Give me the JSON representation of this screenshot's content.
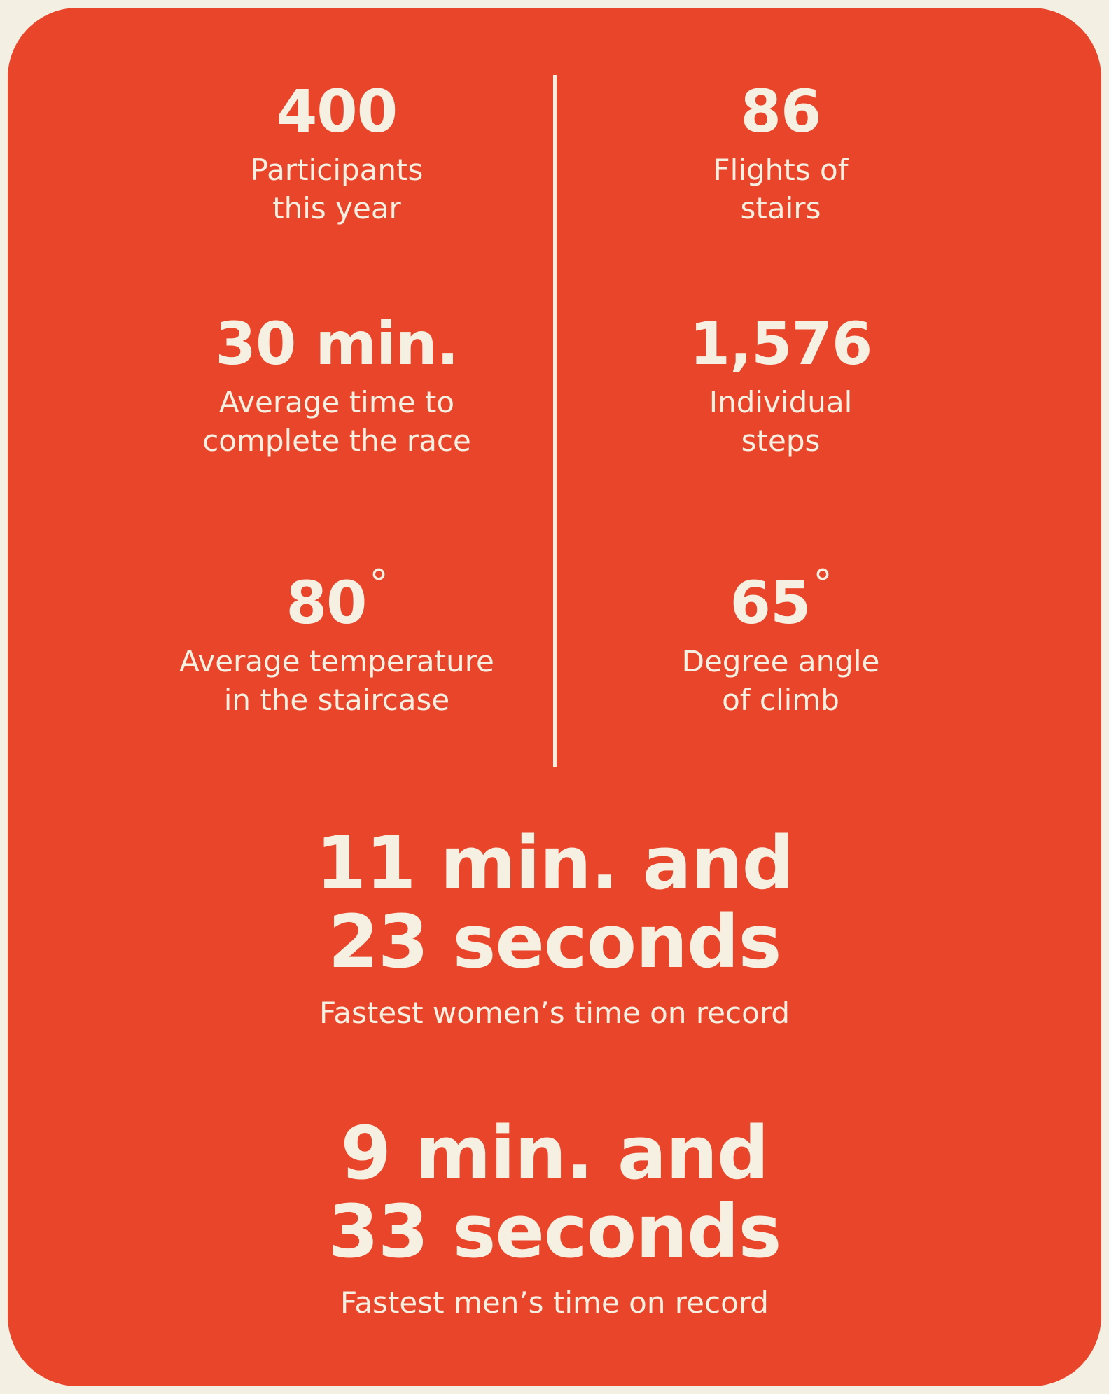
{
  "colors": {
    "background": "#f4efe3",
    "card": "#e8452a",
    "text": "#f6f0e2"
  },
  "stats": {
    "participants": {
      "value": "400",
      "label_line1": "Participants",
      "label_line2": "this year"
    },
    "flights": {
      "value": "86",
      "label_line1": "Flights of",
      "label_line2": "stairs"
    },
    "avg_time": {
      "value": "30 min.",
      "label_line1": "Average time to",
      "label_line2": "complete the race"
    },
    "steps": {
      "value": "1,576",
      "label_line1": "Individual",
      "label_line2": "steps"
    },
    "avg_temp": {
      "value": "80",
      "unit": "°",
      "label_line1": "Average temperature",
      "label_line2": "in the staircase"
    },
    "angle": {
      "value": "65",
      "unit": "°",
      "label_line1": "Degree angle",
      "label_line2": "of climb"
    }
  },
  "records": {
    "women": {
      "value_line1": "11 min. and",
      "value_line2": "23 seconds",
      "label": "Fastest women’s time on record"
    },
    "men": {
      "value_line1": "9 min. and",
      "value_line2": "33 seconds",
      "label": "Fastest men’s time on record"
    }
  }
}
